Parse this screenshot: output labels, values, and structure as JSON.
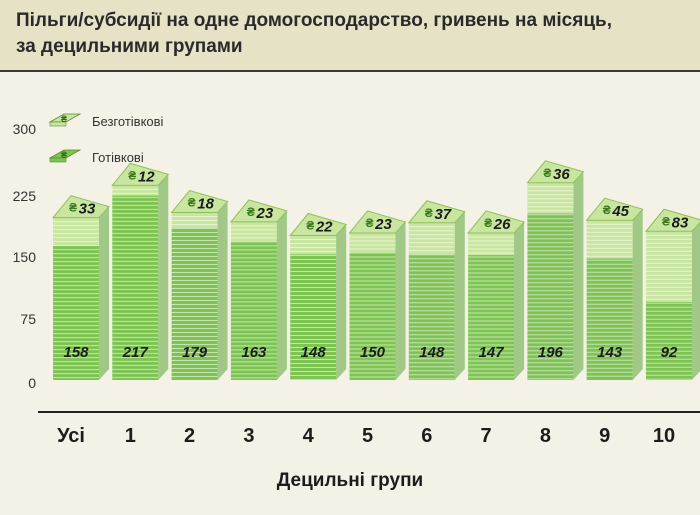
{
  "title_line1": "Пільги/субсидії на одне домогосподарство, гривень на місяць,",
  "title_line2": "за децильними групами",
  "colors": {
    "cash": "#7ec453",
    "cashless": "#c9e6a0",
    "band": "#e6e2c6",
    "background": "#f4f2e6"
  },
  "chart_data": {
    "type": "bar",
    "stacked": true,
    "categories": [
      "Усі",
      "1",
      "2",
      "3",
      "4",
      "5",
      "6",
      "7",
      "8",
      "9",
      "10"
    ],
    "series": [
      {
        "name": "Готівкові",
        "values": [
          158,
          217,
          179,
          163,
          148,
          150,
          148,
          147,
          196,
          143,
          92
        ]
      },
      {
        "name": "Безготівкові",
        "values": [
          33,
          12,
          18,
          23,
          22,
          23,
          37,
          26,
          36,
          45,
          83
        ]
      }
    ],
    "title": "Пільги/субсидії на одне домогосподарство, гривень на місяць, за децильними групами",
    "xlabel": "Децильні групи",
    "ylabel": "",
    "yticks": [
      0,
      75,
      150,
      225,
      300
    ],
    "ylim": [
      0,
      300
    ],
    "grid": false,
    "legend": "top-left"
  }
}
